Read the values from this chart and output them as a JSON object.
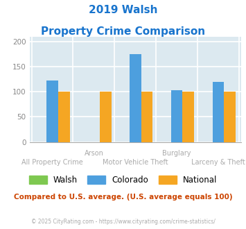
{
  "title_line1": "2019 Walsh",
  "title_line2": "Property Crime Comparison",
  "title_color": "#1874cd",
  "categories": [
    "All Property Crime",
    "Arson",
    "Motor Vehicle Theft",
    "Burglary",
    "Larceny & Theft"
  ],
  "categories_high": [
    1,
    3
  ],
  "categories_low": [
    0,
    2,
    4
  ],
  "walsh": [
    0,
    0,
    0,
    0,
    0
  ],
  "colorado": [
    123,
    0,
    175,
    103,
    120
  ],
  "national": [
    100,
    100,
    100,
    100,
    100
  ],
  "walsh_color": "#7ec850",
  "colorado_color": "#4d9fde",
  "national_color": "#f5a623",
  "ylim": [
    0,
    210
  ],
  "yticks": [
    0,
    50,
    100,
    150,
    200
  ],
  "bg_color": "#dce9f0",
  "grid_color": "#ffffff",
  "label_color": "#aaaaaa",
  "footer_text": "© 2025 CityRating.com - https://www.cityrating.com/crime-statistics/",
  "compare_text": "Compared to U.S. average. (U.S. average equals 100)",
  "compare_color": "#cc4400",
  "footer_color": "#aaaaaa",
  "bar_width": 0.28
}
